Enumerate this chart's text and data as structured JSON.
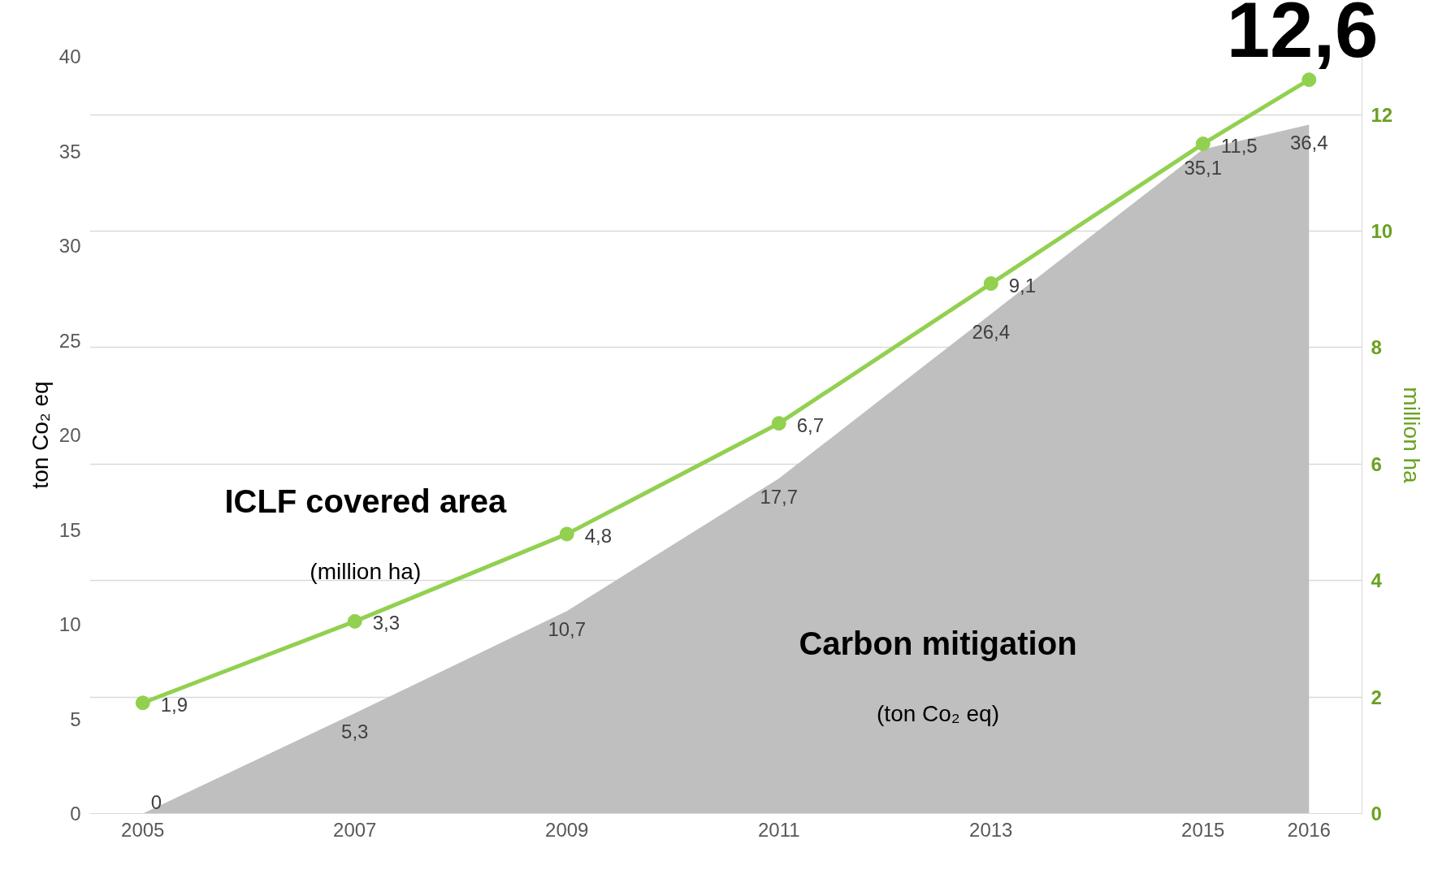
{
  "chart_data": {
    "type": "area",
    "x": [
      2005,
      2007,
      2009,
      2011,
      2013,
      2015,
      2016
    ],
    "xlim": [
      2004.5,
      2016.5
    ],
    "xticks": [
      2005,
      2007,
      2009,
      2011,
      2013,
      2015,
      2016
    ],
    "ylim": [
      0,
      40
    ],
    "yticks": [
      0,
      5,
      10,
      15,
      20,
      25,
      30,
      35,
      40
    ],
    "y2lim": [
      0,
      13
    ],
    "y2ticks": [
      0,
      2,
      4,
      6,
      8,
      10,
      12
    ],
    "ylabel": "ton Co₂ eq",
    "y2label": "million ha",
    "grid": true,
    "series": [
      {
        "name": "Carbon mitigation",
        "color": "#bfbfbf",
        "values": [
          0,
          5.3,
          10.7,
          17.7,
          26.4,
          35.1,
          36.4
        ],
        "value_labels": [
          "0",
          "5,3",
          "10,7",
          "17,7",
          "26,4",
          "35,1",
          "36,4"
        ]
      },
      {
        "name": "ICLF covered area",
        "type": "line",
        "axis": "y2",
        "color": "#92d050",
        "marker": "circle",
        "line_style": "solid",
        "values": [
          1.9,
          3.3,
          4.8,
          6.7,
          9.1,
          11.5,
          12.6
        ],
        "value_labels": [
          "1,9",
          "3,3",
          "4,8",
          "6,7",
          "9,1",
          "11,5",
          "12,6"
        ]
      }
    ],
    "annotations": [
      "(ton Co₂ eq)",
      "(million ha)"
    ]
  }
}
